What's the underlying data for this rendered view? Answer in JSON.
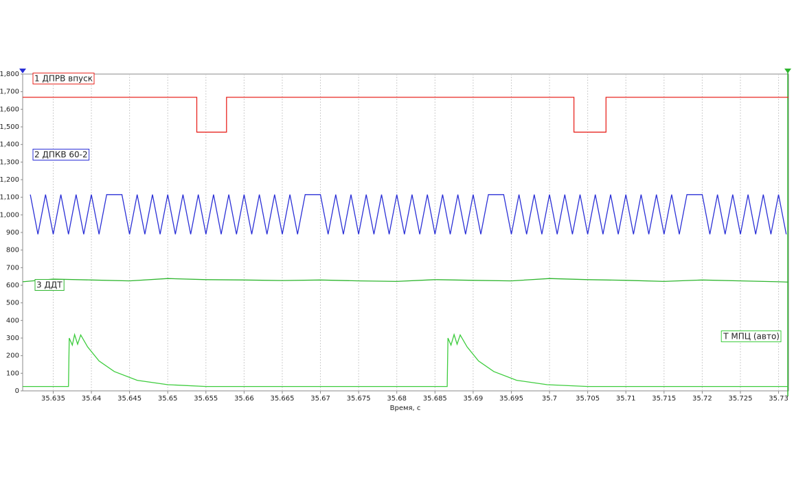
{
  "chart_data": {
    "type": "line",
    "x_label": "Время, с",
    "xlim": [
      35.631,
      35.7313
    ],
    "ylim": [
      0,
      1800
    ],
    "xticks": [
      35.635,
      35.64,
      35.645,
      35.65,
      35.655,
      35.66,
      35.665,
      35.67,
      35.675,
      35.68,
      35.685,
      35.69,
      35.695,
      35.7,
      35.705,
      35.71,
      35.715,
      35.72,
      35.725,
      35.73
    ],
    "yticks": [
      0,
      100,
      200,
      300,
      400,
      500,
      600,
      700,
      800,
      900,
      {
        "value": 1000,
        "label": "1,000"
      },
      {
        "value": 1100,
        "label": "1,100"
      },
      {
        "value": 1200,
        "label": "1,200"
      },
      {
        "value": 1300,
        "label": "1,300"
      },
      {
        "value": 1400,
        "label": "1,400"
      },
      {
        "value": 1500,
        "label": "1,500"
      },
      {
        "value": 1600,
        "label": "1,600"
      },
      {
        "value": 1700,
        "label": "1,700"
      },
      {
        "value": 1800,
        "label": "1,800"
      }
    ],
    "grid": true,
    "series": [
      {
        "name": "1 ДПРВ впуск",
        "color": "#e8251f",
        "x": [
          35.631,
          35.6538,
          35.6538,
          35.6577,
          35.6577,
          35.7032,
          35.7032,
          35.7074,
          35.7074,
          35.7313
        ],
        "values": [
          1668,
          1668,
          1470,
          1470,
          1668,
          1668,
          1470,
          1470,
          1668,
          1668
        ]
      },
      {
        "name": "2 ДПКВ 60-2",
        "color": "#2a2fd6",
        "x": [
          35.632,
          35.633,
          35.634,
          35.635,
          35.636,
          35.637,
          35.638,
          35.639,
          35.64,
          35.641,
          35.642,
          35.643,
          35.644,
          35.645,
          35.646,
          35.647,
          35.648,
          35.649,
          35.65,
          35.651,
          35.652,
          35.653,
          35.654,
          35.655,
          35.656,
          35.657,
          35.658,
          35.659,
          35.66,
          35.661,
          35.662,
          35.663,
          35.664,
          35.665,
          35.666,
          35.667,
          35.668,
          35.669,
          35.67,
          35.671,
          35.672,
          35.673,
          35.674,
          35.675,
          35.676,
          35.677,
          35.678,
          35.679,
          35.68,
          35.681,
          35.682,
          35.683,
          35.684,
          35.685,
          35.686,
          35.687,
          35.688,
          35.689,
          35.69,
          35.691,
          35.692,
          35.693,
          35.694,
          35.695,
          35.696,
          35.697,
          35.698,
          35.699,
          35.7,
          35.701,
          35.702,
          35.703,
          35.704,
          35.705,
          35.706,
          35.707,
          35.708,
          35.709,
          35.71,
          35.711,
          35.712,
          35.713,
          35.714,
          35.715,
          35.716,
          35.717,
          35.718,
          35.719,
          35.72,
          35.721,
          35.722,
          35.723,
          35.724,
          35.725,
          35.726,
          35.727,
          35.728,
          35.729,
          35.73,
          35.731
        ],
        "values": [
          1115,
          890,
          1115,
          890,
          1115,
          890,
          1115,
          890,
          1115,
          890,
          1115,
          1115,
          1115,
          890,
          1115,
          890,
          1115,
          890,
          1115,
          890,
          1115,
          890,
          1115,
          890,
          1115,
          890,
          1115,
          890,
          1115,
          890,
          1115,
          890,
          1115,
          890,
          1115,
          890,
          1115,
          1115,
          1115,
          890,
          1115,
          890,
          1115,
          890,
          1115,
          890,
          1115,
          890,
          1115,
          890,
          1115,
          890,
          1115,
          890,
          1115,
          890,
          1115,
          890,
          1115,
          890,
          1115,
          1115,
          1115,
          890,
          1115,
          890,
          1115,
          890,
          1115,
          890,
          1115,
          890,
          1115,
          890,
          1115,
          890,
          1115,
          890,
          1115,
          890,
          1115,
          890,
          1115,
          890,
          1115,
          890,
          1115,
          1115,
          1115,
          890,
          1115,
          890,
          1115,
          890,
          1115,
          890,
          1115,
          890,
          1115,
          890
        ]
      },
      {
        "name": "3 ДДТ",
        "color": "#2db52d",
        "x": [
          35.631,
          35.635,
          35.64,
          35.645,
          35.65,
          35.655,
          35.66,
          35.665,
          35.67,
          35.675,
          35.68,
          35.685,
          35.69,
          35.695,
          35.7,
          35.705,
          35.71,
          35.715,
          35.72,
          35.725,
          35.73,
          35.7313
        ],
        "values": [
          620,
          635,
          630,
          625,
          638,
          632,
          630,
          627,
          630,
          625,
          622,
          632,
          628,
          625,
          638,
          632,
          628,
          622,
          630,
          625,
          620,
          618
        ]
      },
      {
        "name": "Т МПЦ (авто)",
        "color": "#3ccc3c",
        "x": [
          35.631,
          35.637,
          35.6371,
          35.6375,
          35.6378,
          35.6382,
          35.6386,
          35.6395,
          35.641,
          35.643,
          35.646,
          35.65,
          35.655,
          35.6866,
          35.6867,
          35.6871,
          35.6875,
          35.6879,
          35.6883,
          35.6892,
          35.6907,
          35.6927,
          35.6957,
          35.6997,
          35.705,
          35.7313
        ],
        "values": [
          25,
          25,
          300,
          260,
          320,
          265,
          318,
          250,
          170,
          110,
          60,
          35,
          25,
          25,
          300,
          260,
          320,
          265,
          318,
          250,
          170,
          110,
          60,
          35,
          25,
          25
        ]
      }
    ]
  }
}
